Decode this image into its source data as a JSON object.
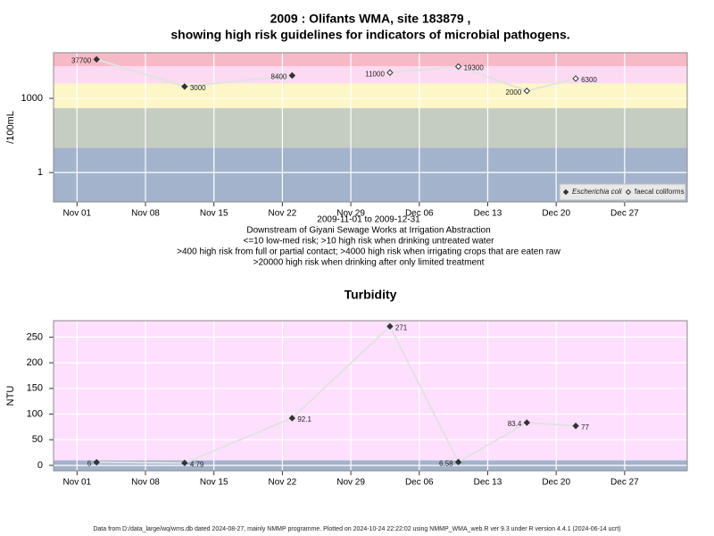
{
  "chart_data": [
    {
      "type": "line",
      "title": [
        "2009 : Olifants WMA, site 183879 ,",
        "showing high risk guidelines for indicators of microbial pathogens."
      ],
      "notes": [
        "2009-11-01 to 2009-12-31",
        "Downstream of Giyani Sewage Works at Irrigation Abstraction",
        "<=10 low-med risk; >10 high risk when drinking untreated water",
        ">400 high risk from full or partial contact; >4000 high risk when irrigating crops that are eaten raw",
        ">20000 high risk when drinking after only limited treatment"
      ],
      "ylabel": "/100mL",
      "log": true,
      "ylim": [
        0.065,
        70000
      ],
      "yticks": [
        1,
        1000
      ],
      "xlim": [
        "2009-10-29T14:24:00Z",
        "2010-01-02T09:36:00Z"
      ],
      "xticks": [
        {
          "value": "2009-11-01",
          "label": "Nov 01"
        },
        {
          "value": "2009-11-08",
          "label": "Nov 08"
        },
        {
          "value": "2009-11-15",
          "label": "Nov 15"
        },
        {
          "value": "2009-11-22",
          "label": "Nov 22"
        },
        {
          "value": "2009-11-29",
          "label": "Nov 29"
        },
        {
          "value": "2009-12-06",
          "label": "Dec 06"
        },
        {
          "value": "2009-12-13",
          "label": "Dec 13"
        },
        {
          "value": "2009-12-20",
          "label": "Dec 20"
        },
        {
          "value": "2009-12-27",
          "label": "Dec 27"
        }
      ],
      "bands": [
        {
          "max": 10,
          "color": "#a3b3cc"
        },
        {
          "max": 400,
          "color": "#c5ccc2"
        },
        {
          "max": 4000,
          "color": "#fdf6c6"
        },
        {
          "max": 20000,
          "color": "#fcdaf2"
        },
        {
          "color": "#f8b9c6"
        }
      ],
      "legend": "bottom-right",
      "series": [
        {
          "name": "Escherichia coli",
          "color": "#333333",
          "filled": true,
          "x": [
            "2009-11-03",
            "2009-11-12",
            "2009-11-23"
          ],
          "values": [
            37700,
            3000,
            8400
          ]
        },
        {
          "name": "faecal coliforms",
          "color": "#333333",
          "filled": false,
          "x": [
            "2009-12-03",
            "2009-12-10",
            "2009-12-17",
            "2009-12-22"
          ],
          "values": [
            11000,
            19300,
            2000,
            6300
          ]
        }
      ]
    },
    {
      "type": "line",
      "title": [
        "Turbidity"
      ],
      "ylabel": "NTU",
      "log": false,
      "ylim": [
        -10.5,
        282
      ],
      "yticks": [
        0,
        50,
        100,
        150,
        200,
        250
      ],
      "xlim": [
        "2009-10-29T14:24:00Z",
        "2010-01-02T09:36:00Z"
      ],
      "xticks": [
        {
          "value": "2009-11-01",
          "label": "Nov 01"
        },
        {
          "value": "2009-11-08",
          "label": "Nov 08"
        },
        {
          "value": "2009-11-15",
          "label": "Nov 15"
        },
        {
          "value": "2009-11-22",
          "label": "Nov 22"
        },
        {
          "value": "2009-11-29",
          "label": "Nov 29"
        },
        {
          "value": "2009-12-06",
          "label": "Dec 06"
        },
        {
          "value": "2009-12-13",
          "label": "Dec 13"
        },
        {
          "value": "2009-12-20",
          "label": "Dec 20"
        },
        {
          "value": "2009-12-27",
          "label": "Dec 27"
        }
      ],
      "bands": [
        {
          "max": 10,
          "color": "#a3b3cc"
        },
        {
          "color": "#fee0fe"
        }
      ],
      "series": [
        {
          "name": "Turbidity",
          "color": "#333333",
          "filled": true,
          "x": [
            "2009-11-03",
            "2009-11-12",
            "2009-11-23",
            "2009-12-03",
            "2009-12-10",
            "2009-12-17",
            "2009-12-22"
          ],
          "values": [
            6,
            4.79,
            92.1,
            271,
            6.58,
            83.4,
            77
          ]
        }
      ]
    }
  ],
  "footer": "Data from D:/data_large/wq/wms.db dated 2024-08-27, mainly NMMP programme. Plotted on 2024-10-24 22:22:02 using NMMP_WMA_web.R ver 9.3 under R version 4.4.1 (2024-06-14 ucrt)"
}
